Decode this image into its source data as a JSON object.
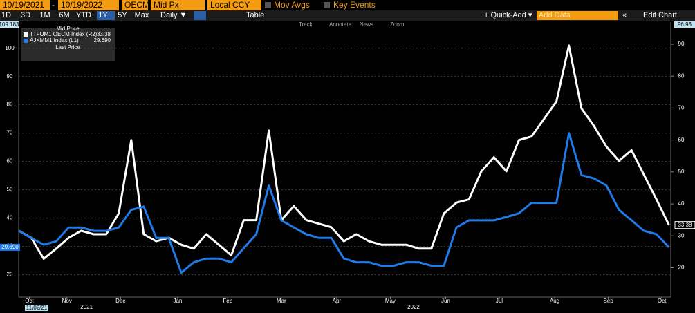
{
  "toolbar": {
    "start_date": "10/19/2021",
    "dash": "-",
    "end_date": "10/19/2022",
    "source": "OECM",
    "field": "Mid Px",
    "currency": "Local CCY",
    "mov_avgs": "Mov Avgs",
    "key_events": "Key Events",
    "ranges": [
      "1D",
      "3D",
      "1M",
      "6M",
      "YTD",
      "1Y",
      "5Y",
      "Max"
    ],
    "active_range": 5,
    "frequency": "Daily ▼",
    "table": "Table",
    "quick_add": "+ Quick-Add ▾",
    "add_data": "Add Data",
    "edit_chart": "Edit Chart",
    "tools": [
      "Track",
      "Annotate",
      "News",
      "Zoom"
    ]
  },
  "chart_data": {
    "type": "line",
    "legend_title": "Mid Price",
    "legend_footer": "Last Price",
    "x": [
      0,
      7,
      14,
      21,
      28,
      35,
      42,
      49,
      56,
      63,
      70,
      77,
      84,
      91,
      98,
      105,
      112,
      119,
      126,
      133,
      140,
      147,
      154,
      161,
      168,
      175,
      182,
      189,
      196,
      203,
      210,
      217,
      224,
      231,
      238,
      245,
      252,
      259,
      266,
      273,
      280,
      287,
      294,
      301,
      308,
      315,
      322,
      329,
      336,
      343,
      350,
      357,
      364
    ],
    "xlim": [
      0,
      365
    ],
    "xticks": [
      {
        "value": 6,
        "label": "Oct"
      },
      {
        "value": 27,
        "label": "Nov"
      },
      {
        "value": 57,
        "label": "Dec"
      },
      {
        "value": 89,
        "label": "Jan"
      },
      {
        "value": 117,
        "label": "Feb"
      },
      {
        "value": 147,
        "label": "Mar"
      },
      {
        "value": 178,
        "label": "Apr"
      },
      {
        "value": 208,
        "label": "May"
      },
      {
        "value": 239,
        "label": "Jun"
      },
      {
        "value": 269,
        "label": "Jul"
      },
      {
        "value": 300,
        "label": "Aug"
      },
      {
        "value": 330,
        "label": "Sep"
      },
      {
        "value": 360,
        "label": "Oct"
      }
    ],
    "year_ticks": [
      {
        "value": 38,
        "label": "2021"
      },
      {
        "value": 221,
        "label": "2022"
      }
    ],
    "cursor_date": "11/02/21",
    "ylim": [
      12.1,
      109.183
    ],
    "yticks": [
      20,
      30,
      40,
      50,
      60,
      70,
      80,
      90,
      100
    ],
    "y2lim": [
      10.8,
      96.93
    ],
    "y2ticks": [
      20,
      30,
      40,
      50,
      60,
      70,
      80,
      90
    ],
    "grid": true,
    "series": [
      {
        "name": "TTFUM1 OECM Index (R2)",
        "color": "#ffffff",
        "axis": "y2",
        "values": [
          31.6,
          29.4,
          22.8,
          26,
          29.4,
          31.6,
          30.5,
          30.5,
          37,
          60,
          30.5,
          28.3,
          29.4,
          27.2,
          26,
          30.5,
          27.2,
          23.9,
          34.9,
          34.9,
          63,
          34.9,
          39.3,
          34.9,
          33.8,
          32.7,
          28.3,
          30.5,
          28.3,
          27.2,
          27.2,
          27.2,
          26,
          26,
          37,
          40.4,
          41.4,
          50.2,
          54.6,
          50.2,
          60,
          61.1,
          66.6,
          72.1,
          89.6,
          69.9,
          64.4,
          57.9,
          53.5,
          56.8,
          49.1,
          41.4,
          33.38
        ]
      },
      {
        "name": "AJKMM1 Index (L1)",
        "color": "#1e7be8",
        "axis": "y",
        "values": [
          35.5,
          33,
          30.6,
          31.8,
          36.7,
          36.7,
          35.5,
          35.5,
          36.7,
          42.9,
          44.1,
          33,
          33,
          20.7,
          24.4,
          25.7,
          25.7,
          24.4,
          29.4,
          34.3,
          51.5,
          39.2,
          36.7,
          34.3,
          33,
          33,
          25.7,
          24.4,
          24.4,
          23.2,
          23.2,
          24.4,
          24.4,
          23.2,
          23.2,
          36.7,
          39.2,
          39.2,
          39.2,
          40.4,
          41.7,
          45.4,
          45.4,
          45.4,
          70,
          55.2,
          54,
          51.5,
          42.9,
          39.2,
          35.5,
          34.3,
          29.69
        ],
        "last_label": "29.690"
      }
    ]
  }
}
